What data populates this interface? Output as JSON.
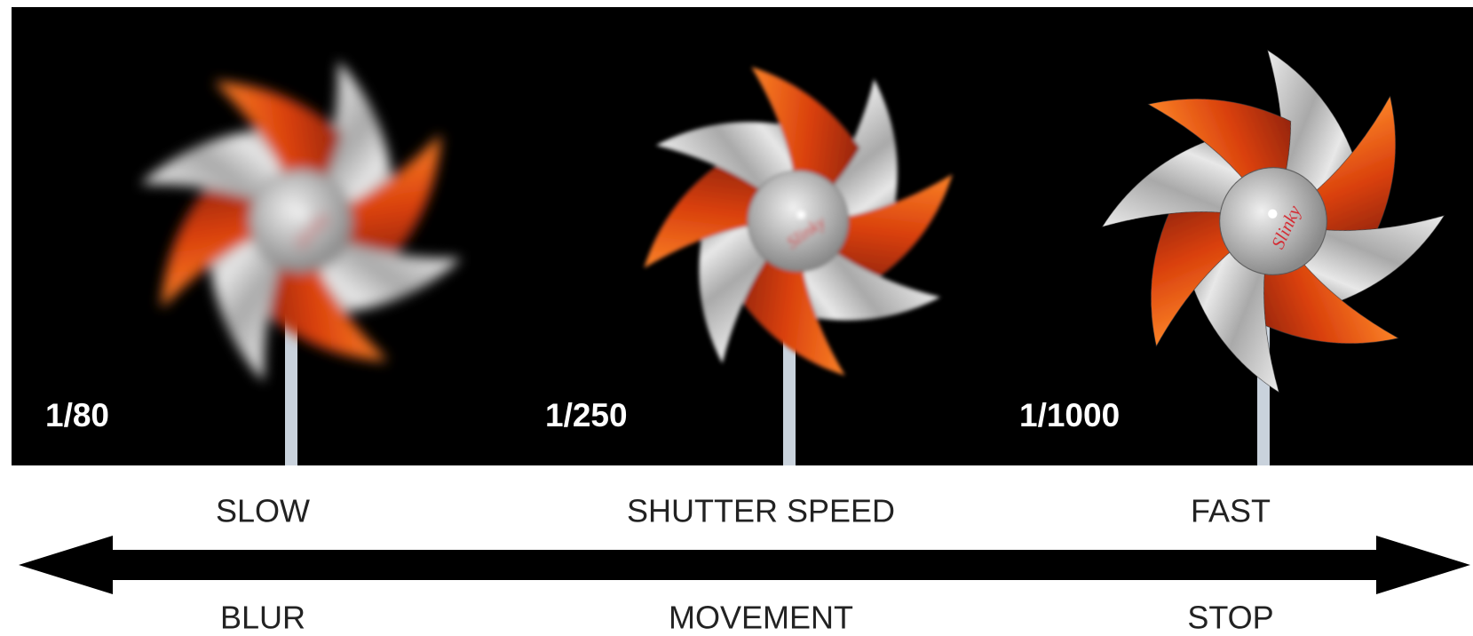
{
  "speeds": [
    "1/80",
    "1/250",
    "1/1000"
  ],
  "top_labels": [
    "SLOW",
    "SHUTTER SPEED",
    "FAST"
  ],
  "bottom_labels": [
    "BLUR",
    "MOVEMENT",
    "STOP"
  ],
  "brand": "Slinky"
}
